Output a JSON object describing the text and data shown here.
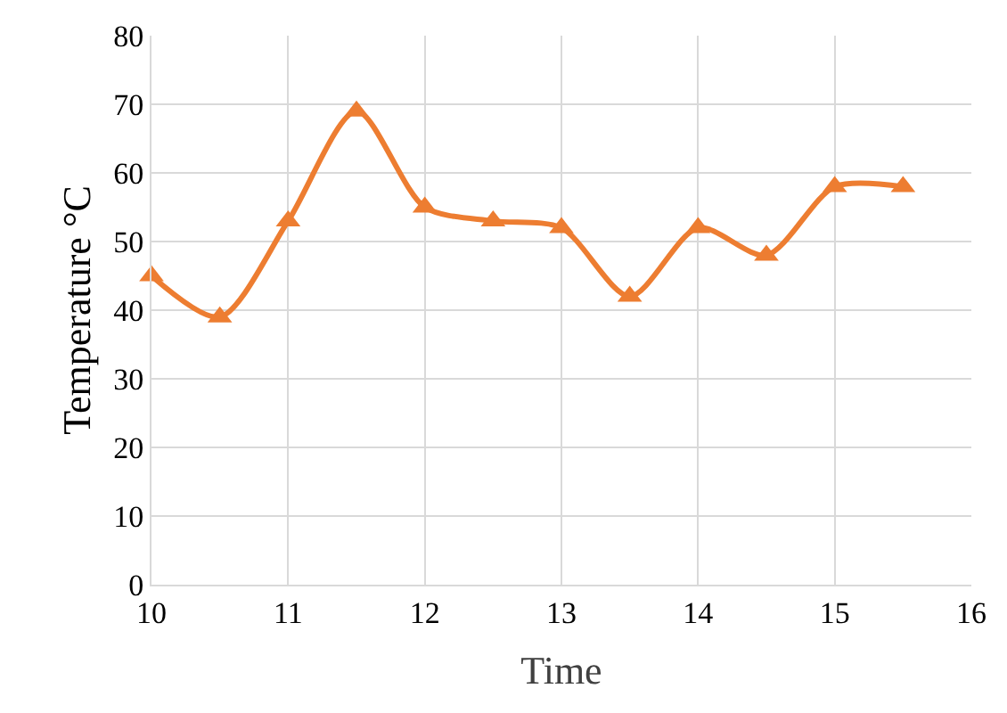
{
  "chart_data": {
    "type": "line",
    "xlabel": "Time",
    "ylabel": "Temperature °C",
    "x": [
      10,
      10.5,
      11,
      11.5,
      12,
      12.5,
      13,
      13.5,
      14,
      14.5,
      15,
      15.5
    ],
    "series": [
      {
        "color": "#ed7d31",
        "values": [
          45,
          39,
          53,
          69,
          55,
          53,
          52,
          42,
          52,
          48,
          58,
          58
        ]
      }
    ],
    "xlim": [
      10,
      16
    ],
    "xticks": [
      10,
      11,
      12,
      13,
      14,
      15,
      16
    ],
    "ylim": [
      0,
      80
    ],
    "yticks": [
      0,
      10,
      20,
      30,
      40,
      50,
      60,
      70,
      80
    ],
    "grid": true,
    "marker": "triangle",
    "line_style": "solid"
  }
}
